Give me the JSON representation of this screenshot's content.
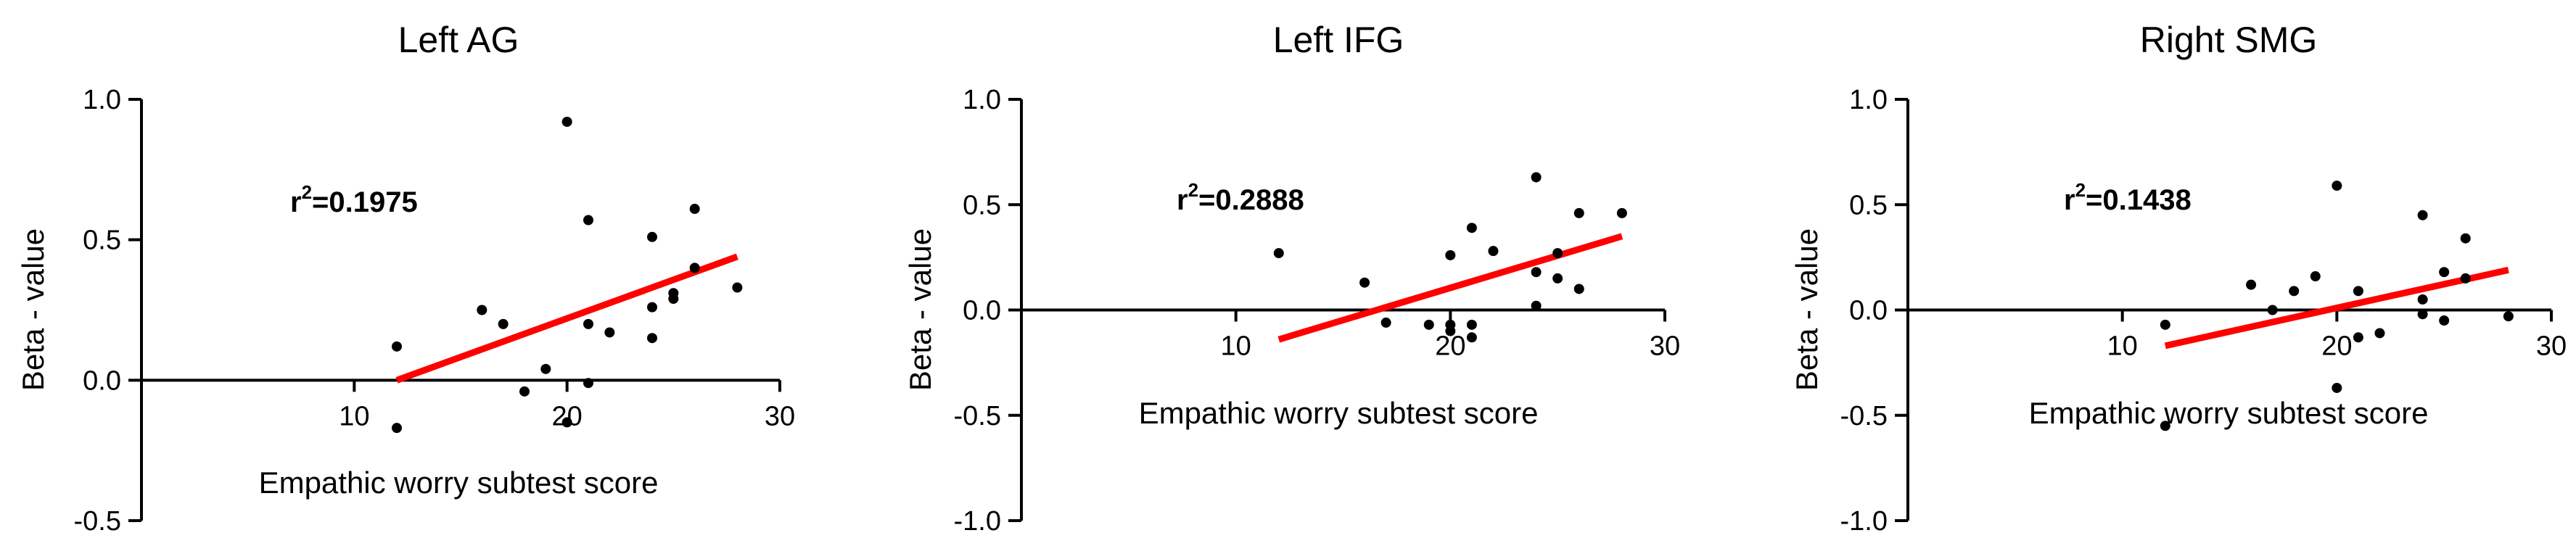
{
  "chart_data": [
    {
      "type": "scatter",
      "title": "Left AG",
      "xlabel": "Empathic worry subtest score",
      "ylabel": "Beta - value",
      "xlim": [
        0,
        30
      ],
      "ylim": [
        -0.5,
        1.0
      ],
      "xticks": [
        10,
        20,
        30
      ],
      "yticks": [
        -0.5,
        0.0,
        0.5,
        1.0
      ],
      "xtick_labels": [
        "10",
        "20",
        "30"
      ],
      "ytick_labels": [
        "-0.5",
        "0.0",
        "0.5",
        "1.0"
      ],
      "annotation": {
        "prefix": "r",
        "sup": "2",
        "text": "=0.1975"
      },
      "fit_line": {
        "x": [
          12,
          28
        ],
        "y": [
          0.0,
          0.44
        ],
        "color": "#ff0000"
      },
      "points": [
        {
          "x": 12,
          "y": 0.12
        },
        {
          "x": 12,
          "y": -0.17
        },
        {
          "x": 16,
          "y": 0.25
        },
        {
          "x": 17,
          "y": 0.2
        },
        {
          "x": 18,
          "y": -0.04
        },
        {
          "x": 19,
          "y": 0.04
        },
        {
          "x": 20,
          "y": 0.92
        },
        {
          "x": 20,
          "y": -0.15
        },
        {
          "x": 21,
          "y": 0.57
        },
        {
          "x": 21,
          "y": 0.2
        },
        {
          "x": 21,
          "y": -0.01
        },
        {
          "x": 22,
          "y": 0.17
        },
        {
          "x": 24,
          "y": 0.51
        },
        {
          "x": 24,
          "y": 0.26
        },
        {
          "x": 24,
          "y": 0.15
        },
        {
          "x": 25,
          "y": 0.29
        },
        {
          "x": 25,
          "y": 0.31
        },
        {
          "x": 26,
          "y": 0.61
        },
        {
          "x": 26,
          "y": 0.4
        },
        {
          "x": 28,
          "y": 0.33
        }
      ]
    },
    {
      "type": "scatter",
      "title": "Left IFG",
      "xlabel": "Empathic worry subtest score",
      "ylabel": "Beta - value",
      "xlim": [
        0,
        30
      ],
      "ylim": [
        -1.0,
        1.0
      ],
      "xticks": [
        10,
        20,
        30
      ],
      "yticks": [
        -1.0,
        -0.5,
        0.0,
        0.5,
        1.0
      ],
      "xtick_labels": [
        "10",
        "20",
        "30"
      ],
      "ytick_labels": [
        "-1.0",
        "-0.5",
        "0.0",
        "0.5",
        "1.0"
      ],
      "annotation": {
        "prefix": "r",
        "sup": "2",
        "text": "=0.2888"
      },
      "fit_line": {
        "x": [
          12,
          28
        ],
        "y": [
          -0.14,
          0.35
        ],
        "color": "#ff0000"
      },
      "points": [
        {
          "x": 12,
          "y": 0.27
        },
        {
          "x": 16,
          "y": 0.13
        },
        {
          "x": 17,
          "y": -0.06
        },
        {
          "x": 19,
          "y": -0.07
        },
        {
          "x": 20,
          "y": 0.26
        },
        {
          "x": 20,
          "y": -0.07
        },
        {
          "x": 20,
          "y": -0.1
        },
        {
          "x": 21,
          "y": 0.39
        },
        {
          "x": 21,
          "y": -0.07
        },
        {
          "x": 21,
          "y": -0.13
        },
        {
          "x": 22,
          "y": 0.28
        },
        {
          "x": 24,
          "y": 0.63
        },
        {
          "x": 24,
          "y": 0.18
        },
        {
          "x": 24,
          "y": 0.02
        },
        {
          "x": 25,
          "y": 0.15
        },
        {
          "x": 25,
          "y": 0.27
        },
        {
          "x": 26,
          "y": 0.46
        },
        {
          "x": 26,
          "y": 0.1
        },
        {
          "x": 28,
          "y": 0.46
        }
      ]
    },
    {
      "type": "scatter",
      "title": "Right  SMG",
      "xlabel": "Empathic worry subtest score",
      "ylabel": "Beta - value",
      "xlim": [
        0,
        30
      ],
      "ylim": [
        -1.0,
        1.0
      ],
      "xticks": [
        10,
        20,
        30
      ],
      "yticks": [
        -1.0,
        -0.5,
        0.0,
        0.5,
        1.0
      ],
      "xtick_labels": [
        "10",
        "20",
        "30"
      ],
      "ytick_labels": [
        "-1.0",
        "-0.5",
        "0.0",
        "0.5",
        "1.0"
      ],
      "annotation": {
        "prefix": "r",
        "sup": "2",
        "text": "=0.1438"
      },
      "fit_line": {
        "x": [
          12,
          28
        ],
        "y": [
          -0.17,
          0.19
        ],
        "color": "#ff0000"
      },
      "points": [
        {
          "x": 12,
          "y": -0.07
        },
        {
          "x": 12,
          "y": -0.55
        },
        {
          "x": 16,
          "y": 0.12
        },
        {
          "x": 17,
          "y": 0.0
        },
        {
          "x": 18,
          "y": 0.09
        },
        {
          "x": 19,
          "y": 0.16
        },
        {
          "x": 20,
          "y": 0.59
        },
        {
          "x": 20,
          "y": -0.37
        },
        {
          "x": 21,
          "y": 0.09
        },
        {
          "x": 21,
          "y": -0.13
        },
        {
          "x": 22,
          "y": -0.11
        },
        {
          "x": 24,
          "y": 0.45
        },
        {
          "x": 24,
          "y": 0.05
        },
        {
          "x": 24,
          "y": -0.02
        },
        {
          "x": 25,
          "y": 0.18
        },
        {
          "x": 25,
          "y": -0.05
        },
        {
          "x": 26,
          "y": 0.34
        },
        {
          "x": 26,
          "y": 0.15
        },
        {
          "x": 28,
          "y": -0.03
        }
      ]
    }
  ]
}
